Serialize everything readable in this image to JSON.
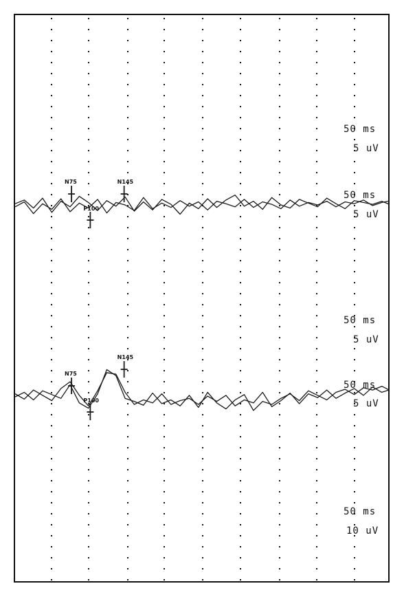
{
  "chart_data": {
    "type": "line",
    "title": "",
    "xlabel": "",
    "ylabel": "",
    "grid": true,
    "panels": [
      {
        "name": "upper",
        "scale_labels": [
          {
            "text": "50 ms",
            "row": 0
          },
          {
            "text": "5 uV",
            "row": 1
          },
          {
            "text": "50 ms",
            "row": 2
          },
          {
            "text": "5 uV",
            "row": 3
          }
        ],
        "peaks": [
          {
            "label": "N75",
            "x": 75,
            "marker": "up"
          },
          {
            "label": "P100",
            "x": 100,
            "marker": "down"
          },
          {
            "label": "N145",
            "x": 145,
            "marker": "up"
          }
        ]
      },
      {
        "name": "lower",
        "scale_labels": [
          {
            "text": "50 ms",
            "row": 0
          },
          {
            "text": "5 uV",
            "row": 1
          },
          {
            "text": "50 ms",
            "row": 2
          },
          {
            "text": "5 uV",
            "row": 3
          }
        ],
        "peaks": [
          {
            "label": "N75",
            "x": 75,
            "marker": "up"
          },
          {
            "label": "P100",
            "x": 100,
            "marker": "down"
          },
          {
            "label": "N145",
            "x": 145,
            "marker": "up"
          }
        ]
      }
    ],
    "bottom_scale": [
      {
        "text": "50 ms"
      },
      {
        "text": "10 uV"
      }
    ],
    "x_range_ms": [
      0,
      500
    ],
    "series": [
      {
        "panel": "upper",
        "trace": 1,
        "values_uV": [
          0.2,
          0.8,
          -0.5,
          1.1,
          -1.2,
          0.6,
          -0.3,
          1.4,
          0.4,
          -0.9,
          0.7,
          -0.2,
          1.3,
          -1.0,
          0.5,
          -0.8,
          0.9,
          0.1,
          -1.5,
          0.3,
          -0.6,
          1.0,
          -0.4,
          0.8,
          1.6,
          -0.2,
          0.6,
          -0.7,
          1.2,
          0.0,
          -0.5,
          0.9,
          0.3,
          -0.3,
          1.1,
          0.2,
          -0.6,
          0.7,
          0.4,
          0.1,
          0.6,
          0.0
        ]
      },
      {
        "panel": "upper",
        "trace": 2,
        "values_uV": [
          -0.3,
          0.5,
          -1.4,
          0.2,
          -0.7,
          1.0,
          -1.1,
          0.3,
          -0.5,
          0.9,
          -1.3,
          0.4,
          0.0,
          -0.9,
          1.2,
          -0.6,
          0.3,
          -0.4,
          0.7,
          -0.2,
          0.5,
          -0.8,
          0.6,
          0.2,
          -0.3,
          0.9,
          -0.4,
          0.5,
          0.1,
          -0.6,
          0.8,
          -0.2,
          0.4,
          0.0,
          0.6,
          -0.3,
          0.5,
          0.2,
          0.8,
          -0.1,
          0.4,
          0.7
        ]
      },
      {
        "panel": "lower",
        "trace": 1,
        "values_uV": [
          0.0,
          0.6,
          -0.4,
          0.8,
          0.3,
          -0.2,
          1.6,
          -0.8,
          -1.5,
          0.4,
          3.6,
          2.8,
          -0.2,
          -0.6,
          -1.1,
          0.5,
          -0.9,
          -0.4,
          -1.2,
          0.2,
          -1.4,
          0.6,
          -0.8,
          -1.6,
          -0.4,
          0.3,
          -1.8,
          -0.6,
          -1.0,
          -0.2,
          0.4,
          -0.5,
          0.8,
          0.2,
          -0.4,
          0.6,
          1.0,
          0.3,
          1.2,
          0.9,
          1.4,
          0.8
        ]
      },
      {
        "panel": "lower",
        "trace": 2,
        "values_uV": [
          0.4,
          -0.3,
          0.9,
          0.2,
          -0.5,
          1.1,
          2.0,
          0.2,
          -1.2,
          0.8,
          3.2,
          3.0,
          0.6,
          -1.0,
          -0.4,
          -0.8,
          0.4,
          -1.0,
          -0.5,
          -0.2,
          -1.0,
          0.1,
          -0.6,
          0.2,
          -1.2,
          -0.4,
          -0.8,
          0.6,
          -1.3,
          -0.5,
          0.5,
          -0.9,
          0.4,
          -0.1,
          0.9,
          -0.2,
          0.5,
          1.1,
          0.2,
          1.3,
          0.6,
          1.0
        ]
      }
    ],
    "colors": {
      "trace": "#1a1a1a",
      "grid": "#111111",
      "frame": "#111111"
    }
  }
}
